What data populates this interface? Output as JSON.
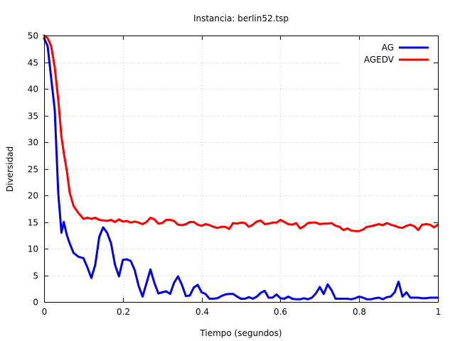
{
  "chart_data": {
    "type": "line",
    "title": "Instancia: berlin52.tsp",
    "xlabel": "Tiempo (segundos)",
    "ylabel": "Diversidad",
    "xlim": [
      0,
      1
    ],
    "ylim": [
      0,
      50
    ],
    "xticks": [
      0,
      0.2,
      0.4,
      0.6,
      0.8,
      1
    ],
    "xtick_labels": [
      "0",
      "0.2",
      "0.4",
      "0.6",
      "0.8",
      "1"
    ],
    "yticks": [
      0,
      5,
      10,
      15,
      20,
      25,
      30,
      35,
      40,
      45,
      50
    ],
    "ytick_labels": [
      "0",
      "5",
      "10",
      "15",
      "20",
      "25",
      "30",
      "35",
      "40",
      "45",
      "50"
    ],
    "grid": true,
    "legend_position": "top-right",
    "series": [
      {
        "name": "AG",
        "color": "#0000ee",
        "x": [
          0,
          0.009,
          0.018,
          0.027,
          0.036,
          0.044,
          0.05,
          0.058,
          0.065,
          0.075,
          0.087,
          0.1,
          0.11,
          0.12,
          0.13,
          0.14,
          0.15,
          0.16,
          0.17,
          0.18,
          0.19,
          0.2,
          0.21,
          0.22,
          0.23,
          0.24,
          0.25,
          0.26,
          0.27,
          0.28,
          0.29,
          0.3,
          0.31,
          0.32,
          0.33,
          0.34,
          0.35,
          0.36,
          0.37,
          0.38,
          0.39,
          0.4,
          0.41,
          0.42,
          0.43,
          0.44,
          0.45,
          0.46,
          0.47,
          0.48,
          0.49,
          0.5,
          0.51,
          0.52,
          0.53,
          0.54,
          0.55,
          0.56,
          0.57,
          0.58,
          0.59,
          0.6,
          0.61,
          0.62,
          0.63,
          0.64,
          0.65,
          0.66,
          0.67,
          0.68,
          0.69,
          0.7,
          0.71,
          0.72,
          0.73,
          0.74,
          0.75,
          0.76,
          0.77,
          0.78,
          0.79,
          0.8,
          0.81,
          0.82,
          0.83,
          0.84,
          0.85,
          0.86,
          0.87,
          0.88,
          0.89,
          0.9,
          0.91,
          0.92,
          0.93,
          0.94,
          0.95,
          0.96,
          0.97,
          0.98,
          0.99,
          1.0
        ],
        "y": [
          49.5,
          48.0,
          42.0,
          36.0,
          20.5,
          13.0,
          15.0,
          12.5,
          11.0,
          9.2,
          8.5,
          8.2,
          6.5,
          4.5,
          7.0,
          12.2,
          14.0,
          13.0,
          11.0,
          7.0,
          4.8,
          7.9,
          8.0,
          7.7,
          6.0,
          3.0,
          1.0,
          3.5,
          6.1,
          3.6,
          1.6,
          1.8,
          2.0,
          1.5,
          3.6,
          4.8,
          3.2,
          1.1,
          1.2,
          2.7,
          3.2,
          1.8,
          1.5,
          0.6,
          0.6,
          0.7,
          1.1,
          1.4,
          1.5,
          1.5,
          1.0,
          0.6,
          0.6,
          0.9,
          0.6,
          1.0,
          1.7,
          2.1,
          0.8,
          0.8,
          1.4,
          0.7,
          0.6,
          1.0,
          0.6,
          0.5,
          0.5,
          0.7,
          0.5,
          0.8,
          1.6,
          2.8,
          1.5,
          3.3,
          2.2,
          0.6,
          0.6,
          0.6,
          0.6,
          0.5,
          0.7,
          1.0,
          0.8,
          0.5,
          0.5,
          0.7,
          0.8,
          0.5,
          0.9,
          1.0,
          1.8,
          3.8,
          1.0,
          1.8,
          0.8,
          0.8,
          0.8,
          0.7,
          0.7,
          0.8,
          0.8,
          0.8
        ]
      },
      {
        "name": "AGEDV",
        "color": "#ff0000",
        "x": [
          0,
          0.009,
          0.018,
          0.027,
          0.036,
          0.044,
          0.05,
          0.058,
          0.065,
          0.075,
          0.087,
          0.1,
          0.11,
          0.12,
          0.13,
          0.14,
          0.15,
          0.16,
          0.17,
          0.18,
          0.19,
          0.2,
          0.21,
          0.22,
          0.23,
          0.24,
          0.25,
          0.26,
          0.27,
          0.28,
          0.29,
          0.3,
          0.31,
          0.32,
          0.33,
          0.34,
          0.35,
          0.36,
          0.37,
          0.38,
          0.39,
          0.4,
          0.41,
          0.42,
          0.43,
          0.44,
          0.45,
          0.46,
          0.47,
          0.48,
          0.49,
          0.5,
          0.51,
          0.52,
          0.53,
          0.54,
          0.55,
          0.56,
          0.57,
          0.58,
          0.59,
          0.6,
          0.61,
          0.62,
          0.63,
          0.64,
          0.65,
          0.66,
          0.67,
          0.68,
          0.69,
          0.7,
          0.71,
          0.72,
          0.73,
          0.74,
          0.75,
          0.76,
          0.77,
          0.78,
          0.79,
          0.8,
          0.81,
          0.82,
          0.83,
          0.84,
          0.85,
          0.86,
          0.87,
          0.88,
          0.89,
          0.9,
          0.91,
          0.92,
          0.93,
          0.94,
          0.95,
          0.96,
          0.97,
          0.98,
          0.99,
          1.0
        ],
        "y": [
          50.0,
          49.5,
          48.0,
          44.0,
          38.0,
          31.0,
          28.0,
          24.5,
          20.5,
          18.0,
          16.7,
          15.6,
          15.8,
          15.6,
          15.8,
          15.4,
          15.3,
          15.2,
          15.4,
          15.0,
          15.5,
          15.1,
          15.2,
          14.9,
          15.1,
          14.9,
          14.6,
          15.0,
          15.8,
          15.5,
          14.7,
          14.8,
          15.4,
          15.4,
          15.2,
          14.5,
          14.4,
          14.6,
          15.0,
          15.0,
          14.5,
          14.3,
          14.6,
          14.4,
          14.1,
          13.9,
          14.1,
          14.1,
          13.7,
          14.8,
          14.7,
          14.9,
          14.8,
          14.1,
          14.5,
          15.1,
          15.3,
          14.6,
          14.7,
          14.9,
          14.9,
          15.4,
          15.0,
          14.6,
          14.5,
          14.8,
          13.8,
          14.2,
          14.8,
          14.9,
          14.9,
          14.6,
          14.7,
          14.7,
          14.8,
          14.3,
          14.1,
          13.5,
          13.8,
          13.4,
          13.3,
          13.3,
          13.6,
          14.1,
          14.2,
          14.4,
          14.6,
          14.4,
          14.8,
          14.5,
          14.3,
          14.0,
          13.9,
          14.3,
          14.5,
          14.2,
          13.5,
          14.5,
          14.6,
          14.5,
          14.0,
          14.5
        ]
      }
    ]
  }
}
